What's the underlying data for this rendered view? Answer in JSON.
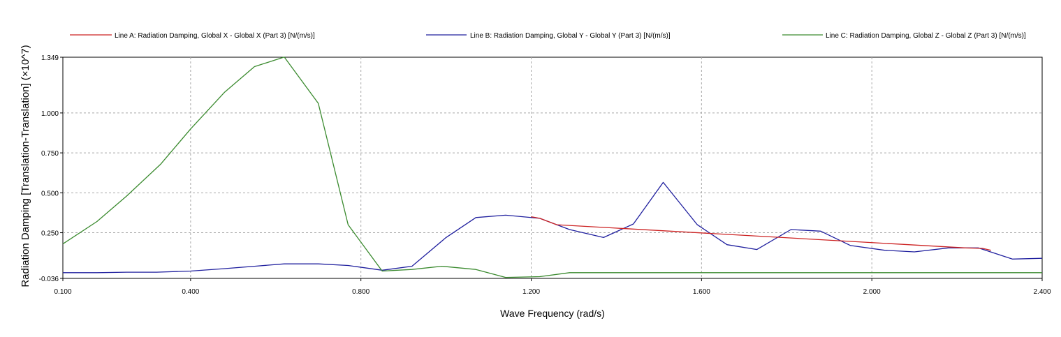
{
  "chart_data": {
    "type": "line",
    "xlabel": "Wave Frequency (rad/s)",
    "ylabel": "Radiation Damping [Translation-Translation] (×10^7)",
    "xlim": [
      0.1,
      2.4
    ],
    "ylim": [
      -0.036,
      1.349
    ],
    "x_ticks": [
      "0.100",
      "0.400",
      "0.800",
      "1.200",
      "1.600",
      "2.000",
      "2.400"
    ],
    "y_ticks": [
      "-0.036",
      "0.250",
      "0.500",
      "0.750",
      "1.000",
      "1.349"
    ],
    "grid": true,
    "legend_position": "top",
    "series": [
      {
        "name": "Line A: Radiation Damping, Global X - Global X (Part 3) [N/(m/s)]",
        "color": "#cc2222",
        "points": [
          [
            1.2,
            0.35
          ],
          [
            1.22,
            0.34
          ],
          [
            1.26,
            0.3
          ],
          [
            2.22,
            0.155
          ],
          [
            2.26,
            0.152
          ],
          [
            2.28,
            0.14
          ]
        ]
      },
      {
        "name": "Line B: Radiation Damping, Global Y - Global Y (Part 3) [N/(m/s)]",
        "color": "#1f1f9e",
        "points": [
          [
            0.1,
            0.0
          ],
          [
            0.18,
            0.0
          ],
          [
            0.25,
            0.003
          ],
          [
            0.32,
            0.003
          ],
          [
            0.4,
            0.01
          ],
          [
            0.48,
            0.025
          ],
          [
            0.55,
            0.04
          ],
          [
            0.62,
            0.055
          ],
          [
            0.7,
            0.055
          ],
          [
            0.77,
            0.045
          ],
          [
            0.85,
            0.015
          ],
          [
            0.92,
            0.04
          ],
          [
            1.0,
            0.22
          ],
          [
            1.07,
            0.345
          ],
          [
            1.14,
            0.36
          ],
          [
            1.22,
            0.34
          ],
          [
            1.29,
            0.27
          ],
          [
            1.37,
            0.22
          ],
          [
            1.44,
            0.305
          ],
          [
            1.51,
            0.565
          ],
          [
            1.59,
            0.3
          ],
          [
            1.66,
            0.175
          ],
          [
            1.73,
            0.145
          ],
          [
            1.81,
            0.27
          ],
          [
            1.88,
            0.26
          ],
          [
            1.95,
            0.17
          ],
          [
            2.03,
            0.14
          ],
          [
            2.1,
            0.13
          ],
          [
            2.18,
            0.155
          ],
          [
            2.25,
            0.155
          ],
          [
            2.33,
            0.085
          ],
          [
            2.4,
            0.09
          ]
        ]
      },
      {
        "name": "Line C: Radiation Damping, Global Z - Global Z (Part 3) [N/(m/s)]",
        "color": "#3a8a2e",
        "points": [
          [
            0.1,
            0.18
          ],
          [
            0.18,
            0.32
          ],
          [
            0.25,
            0.48
          ],
          [
            0.33,
            0.68
          ],
          [
            0.4,
            0.9
          ],
          [
            0.48,
            1.13
          ],
          [
            0.55,
            1.29
          ],
          [
            0.62,
            1.35
          ],
          [
            0.7,
            1.06
          ],
          [
            0.77,
            0.3
          ],
          [
            0.85,
            0.01
          ],
          [
            0.92,
            0.02
          ],
          [
            0.99,
            0.04
          ],
          [
            1.07,
            0.02
          ],
          [
            1.14,
            -0.03
          ],
          [
            1.22,
            -0.025
          ],
          [
            1.29,
            0.0
          ],
          [
            2.4,
            0.0
          ]
        ]
      }
    ]
  }
}
